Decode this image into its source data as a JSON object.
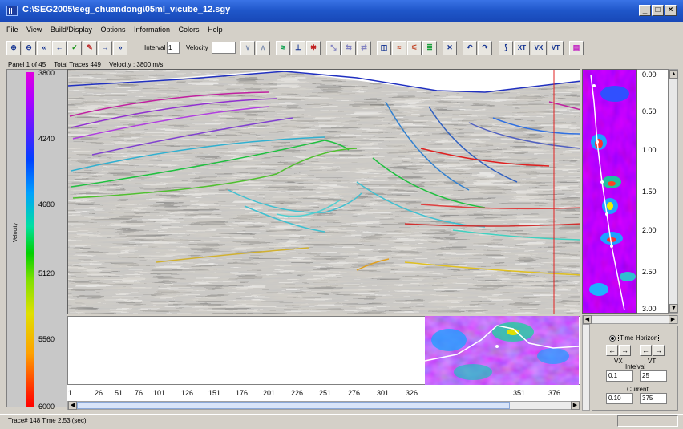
{
  "window": {
    "title": "C:\\SEG2005\\seg_chuandong\\05ml_vicube_12.sgy",
    "controls": [
      "_",
      "□",
      "×"
    ]
  },
  "menu": [
    "File",
    "View",
    "Build/Display",
    "Options",
    "Information",
    "Colors",
    "Help"
  ],
  "toolbar": {
    "interval_label": "Interval",
    "interval_value": "1",
    "velocity_label": "Velocity",
    "velocity_value": "",
    "xt_label": "XT",
    "vx_label": "VX",
    "vt_label": "VT"
  },
  "info": {
    "panel": "Panel 1 of 45",
    "traces": "Total Traces 449",
    "velocity": "Velocity : 3800 m/s"
  },
  "colorbar": {
    "title": "Velocity",
    "ticks": [
      "3800",
      "4240",
      "4680",
      "5120",
      "5560",
      "6000"
    ]
  },
  "time_axis": {
    "ticks": [
      "0.00",
      "0.50",
      "1.00",
      "1.50",
      "2.00",
      "2.50",
      "3.00"
    ]
  },
  "trace_axis": {
    "ticks": [
      "1",
      "26",
      "51",
      "76",
      "101",
      "126",
      "151",
      "176",
      "201",
      "226",
      "251",
      "276",
      "301",
      "326",
      "351",
      "376"
    ]
  },
  "horizon_panel": {
    "mode_label": "Time Horizon",
    "vx_label": "VX",
    "vt_label": "VT",
    "interval_label": "Inte'val",
    "interval_vx": "0.1",
    "interval_vt": "25",
    "current_label": "Current",
    "current_vx": "0.10",
    "current_vt": "375"
  },
  "status": {
    "text": "Trace# 148   Time 2.53 (sec)"
  },
  "colors": {
    "title_bar": "#1f56c9",
    "window_bg": "#d4d0c8",
    "seismic_marker": "#e02020"
  }
}
